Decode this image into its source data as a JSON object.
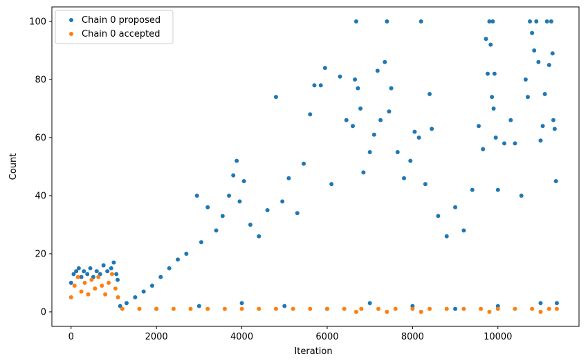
{
  "chart_data": {
    "type": "scatter",
    "title": "",
    "xlabel": "Iteration",
    "ylabel": "Count",
    "xlim": [
      -450,
      11900
    ],
    "ylim": [
      -5,
      105
    ],
    "xticks": [
      0,
      2000,
      4000,
      6000,
      8000,
      10000
    ],
    "yticks": [
      0,
      20,
      40,
      60,
      80,
      100
    ],
    "grid": false,
    "legend_position": "top-left",
    "series": [
      {
        "name": "Chain 0 proposed",
        "color": "#1f77b4",
        "points": [
          [
            0,
            10
          ],
          [
            60,
            13
          ],
          [
            120,
            14
          ],
          [
            180,
            15
          ],
          [
            240,
            12
          ],
          [
            300,
            14
          ],
          [
            380,
            13
          ],
          [
            450,
            15
          ],
          [
            520,
            12
          ],
          [
            600,
            14
          ],
          [
            680,
            13
          ],
          [
            760,
            16
          ],
          [
            850,
            14
          ],
          [
            940,
            15
          ],
          [
            1000,
            17
          ],
          [
            1060,
            13
          ],
          [
            1090,
            11
          ],
          [
            1150,
            2
          ],
          [
            1300,
            3
          ],
          [
            1500,
            5
          ],
          [
            1700,
            7
          ],
          [
            1900,
            9
          ],
          [
            2100,
            12
          ],
          [
            2300,
            15
          ],
          [
            2500,
            18
          ],
          [
            2700,
            20
          ],
          [
            2950,
            40
          ],
          [
            3050,
            24
          ],
          [
            3200,
            36
          ],
          [
            3400,
            28
          ],
          [
            3550,
            33
          ],
          [
            3700,
            40
          ],
          [
            3800,
            47
          ],
          [
            3880,
            52
          ],
          [
            3950,
            38
          ],
          [
            4050,
            45
          ],
          [
            4200,
            30
          ],
          [
            4400,
            26
          ],
          [
            4600,
            35
          ],
          [
            4800,
            74
          ],
          [
            4950,
            38
          ],
          [
            5100,
            46
          ],
          [
            5300,
            34
          ],
          [
            5450,
            51
          ],
          [
            5600,
            68
          ],
          [
            5700,
            78
          ],
          [
            5850,
            78
          ],
          [
            5950,
            84
          ],
          [
            6100,
            44
          ],
          [
            6300,
            81
          ],
          [
            6450,
            66
          ],
          [
            6600,
            64
          ],
          [
            6650,
            80
          ],
          [
            6680,
            100
          ],
          [
            6720,
            77
          ],
          [
            6780,
            70
          ],
          [
            6850,
            48
          ],
          [
            7000,
            55
          ],
          [
            7100,
            61
          ],
          [
            7180,
            83
          ],
          [
            7250,
            66
          ],
          [
            7350,
            86
          ],
          [
            7400,
            100
          ],
          [
            7450,
            69
          ],
          [
            7500,
            77
          ],
          [
            7650,
            55
          ],
          [
            7800,
            46
          ],
          [
            7950,
            52
          ],
          [
            8050,
            62
          ],
          [
            8150,
            60
          ],
          [
            8200,
            100
          ],
          [
            8300,
            44
          ],
          [
            8400,
            75
          ],
          [
            8450,
            63
          ],
          [
            8600,
            33
          ],
          [
            8800,
            26
          ],
          [
            9000,
            36
          ],
          [
            9200,
            28
          ],
          [
            9400,
            42
          ],
          [
            9550,
            64
          ],
          [
            9650,
            56
          ],
          [
            9720,
            94
          ],
          [
            9760,
            82
          ],
          [
            9800,
            100
          ],
          [
            9830,
            92
          ],
          [
            9860,
            74
          ],
          [
            9880,
            100
          ],
          [
            9900,
            70
          ],
          [
            9920,
            82
          ],
          [
            9950,
            60
          ],
          [
            10000,
            42
          ],
          [
            10150,
            58
          ],
          [
            10300,
            66
          ],
          [
            10400,
            58
          ],
          [
            10550,
            40
          ],
          [
            10650,
            80
          ],
          [
            10700,
            74
          ],
          [
            10750,
            100
          ],
          [
            10800,
            96
          ],
          [
            10850,
            90
          ],
          [
            10900,
            100
          ],
          [
            10950,
            86
          ],
          [
            11000,
            59
          ],
          [
            11050,
            64
          ],
          [
            11100,
            75
          ],
          [
            11150,
            100
          ],
          [
            11200,
            85
          ],
          [
            11250,
            100
          ],
          [
            11280,
            89
          ],
          [
            11300,
            66
          ],
          [
            11330,
            63
          ],
          [
            11360,
            45
          ],
          [
            11380,
            3
          ],
          [
            2000,
            1
          ],
          [
            3000,
            2
          ],
          [
            4000,
            3
          ],
          [
            5000,
            2
          ],
          [
            6000,
            1
          ],
          [
            7000,
            3
          ],
          [
            8000,
            2
          ],
          [
            9000,
            1
          ],
          [
            10000,
            2
          ],
          [
            11000,
            3
          ]
        ]
      },
      {
        "name": "Chain 0 accepted",
        "color": "#ff7f0e",
        "points": [
          [
            0,
            5
          ],
          [
            80,
            9
          ],
          [
            160,
            12
          ],
          [
            240,
            7
          ],
          [
            320,
            10
          ],
          [
            400,
            6
          ],
          [
            480,
            11
          ],
          [
            560,
            8
          ],
          [
            640,
            12
          ],
          [
            720,
            9
          ],
          [
            800,
            6
          ],
          [
            880,
            10
          ],
          [
            960,
            13
          ],
          [
            1040,
            8
          ],
          [
            1100,
            5
          ],
          [
            1200,
            1
          ],
          [
            1600,
            1
          ],
          [
            2000,
            1
          ],
          [
            2400,
            1
          ],
          [
            2800,
            1
          ],
          [
            3200,
            1
          ],
          [
            3600,
            1
          ],
          [
            4000,
            1
          ],
          [
            4400,
            1
          ],
          [
            4800,
            1
          ],
          [
            5200,
            1
          ],
          [
            5600,
            1
          ],
          [
            6000,
            1
          ],
          [
            6400,
            1
          ],
          [
            6680,
            0
          ],
          [
            6800,
            1
          ],
          [
            7200,
            1
          ],
          [
            7400,
            0
          ],
          [
            7600,
            1
          ],
          [
            8000,
            1
          ],
          [
            8200,
            0
          ],
          [
            8400,
            1
          ],
          [
            8800,
            1
          ],
          [
            9200,
            1
          ],
          [
            9600,
            1
          ],
          [
            9800,
            0
          ],
          [
            10000,
            1
          ],
          [
            10400,
            1
          ],
          [
            10800,
            1
          ],
          [
            11000,
            0
          ],
          [
            11200,
            1
          ],
          [
            11380,
            1
          ]
        ]
      }
    ]
  }
}
